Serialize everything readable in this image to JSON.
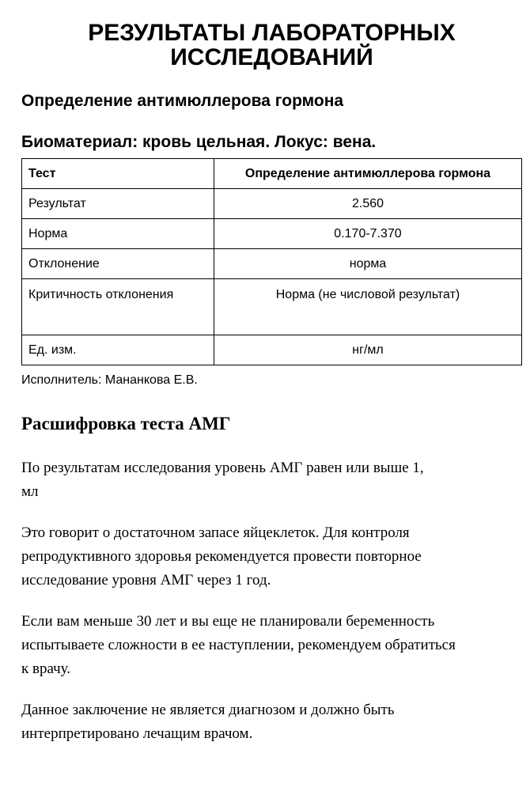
{
  "title": {
    "line1": "РЕЗУЛЬТАТЫ ЛАБОРАТОРНЫХ",
    "line2": "ИССЛЕДОВАНИЙ"
  },
  "test_name": "Определение антимюллерова гормона",
  "biomaterial": "Биоматериал: кровь цельная. Локус: вена.",
  "table": {
    "header": [
      "Тест",
      "Определение антимюллерова гормона"
    ],
    "rows": [
      [
        "Результат",
        "2.560"
      ],
      [
        "Норма",
        "0.170-7.370"
      ],
      [
        "Отклонение",
        "норма"
      ],
      [
        "Критичность отклонения",
        "Норма (не числовой результат)"
      ],
      [
        "Ед. изм.",
        "нг/мл"
      ]
    ]
  },
  "executor": "Исполнитель: Мананкова Е.В.",
  "interpretation": {
    "heading": "Расшифровка теста АМГ",
    "paragraphs": [
      [
        "По результатам исследования уровень АМГ равен или выше 1,",
        "мл"
      ],
      [
        "Это говорит о достаточном запасе яйцеклеток. Для контроля",
        "репродуктивного здоровья рекомендуется провести повторное",
        "исследование уровня АМГ через 1 год."
      ],
      [
        "Если вам меньше 30 лет и вы еще не планировали беременность",
        "испытываете сложности в ее наступлении, рекомендуем обратиться",
        "к врачу."
      ],
      [
        "Данное заключение не является диагнозом и должно быть",
        "интерпретировано лечащим врачом."
      ]
    ]
  }
}
